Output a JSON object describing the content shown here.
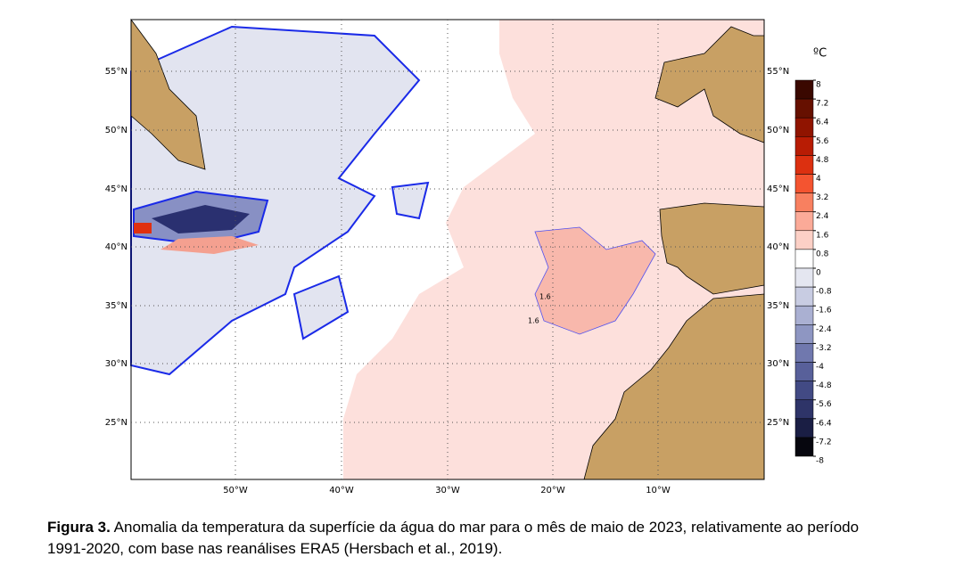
{
  "map": {
    "lat_labels": [
      "55°N",
      "50°N",
      "45°N",
      "40°N",
      "35°N",
      "30°N",
      "25°N"
    ],
    "lon_labels": [
      "50°W",
      "40°W",
      "30°W",
      "20°W",
      "10°W"
    ],
    "contour_label": "1.6"
  },
  "colorbar": {
    "unit": "ºC",
    "ticks": [
      8,
      7.2,
      6.4,
      5.6,
      4.8,
      4,
      3.2,
      2.4,
      1.6,
      0.8,
      0,
      -0.8,
      -1.6,
      -2.4,
      -3.2,
      -4,
      -4.8,
      -5.6,
      -6.4,
      -7.2,
      -8
    ],
    "colors": [
      "#3a0800",
      "#661000",
      "#901400",
      "#b81c04",
      "#dc3010",
      "#f45430",
      "#f88060",
      "#fbaa98",
      "#fcd0c6",
      "#ffffff",
      "#e4e6f0",
      "#c8cce2",
      "#aab0d2",
      "#8e96c2",
      "#7078ae",
      "#58609a",
      "#424a84",
      "#2e3468",
      "#1a1e44",
      "#06060e"
    ]
  },
  "caption": {
    "label": "Figura 3.",
    "text": "Anomalia da temperatura da superfície da água do mar para o mês de maio de 2023, relativamente ao período 1991-2020, com base nas reanálises ERA5 (Hersbach et al., 2019)."
  }
}
